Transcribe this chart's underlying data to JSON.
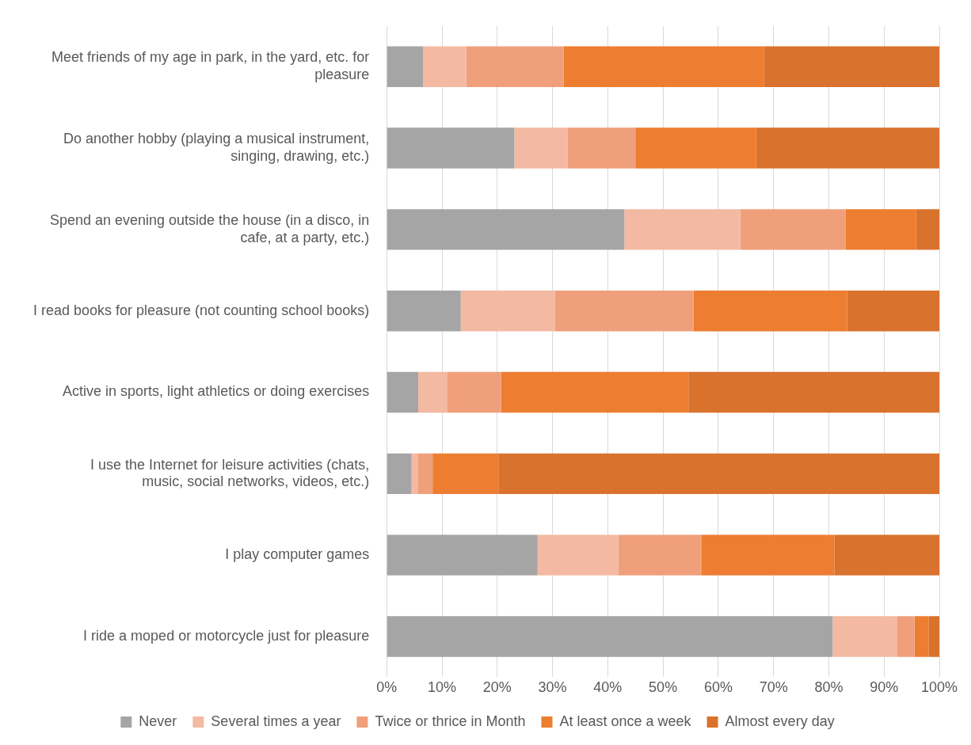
{
  "chart_data": {
    "type": "bar",
    "orientation": "horizontal",
    "stacked": true,
    "categories": [
      "Meet friends of my age in park, in the yard, etc. for pleasure",
      "Do another hobby (playing a musical instrument, singing, drawing, etc.)",
      "Spend an evening outside the house (in a disco, in cafe, at a party, etc.)",
      "I read books for pleasure (not counting school books)",
      "Active in sports, light athletics or doing exercises",
      "I use the Internet for leisure activities (chats, music, social networks, videos, etc.)",
      "I play computer games",
      "I ride a moped or motorcycle just for pleasure"
    ],
    "series": [
      {
        "name": "Never",
        "color": "#a5a5a5",
        "values": [
          6.6,
          23.1,
          43,
          13.4,
          5.7,
          4.5,
          27.3,
          80.7
        ]
      },
      {
        "name": "Several times a year",
        "color": "#f4b9a2",
        "values": [
          7.8,
          9.6,
          21,
          17,
          5.3,
          1.2,
          14.6,
          11.6
        ]
      },
      {
        "name": "Twice or thrice in Month",
        "color": "#f09f7b",
        "values": [
          17.6,
          12.3,
          19,
          25.1,
          9.7,
          2.6,
          15.1,
          3.2
        ]
      },
      {
        "name": "At least once a week",
        "color": "#ed7d31",
        "values": [
          36.3,
          21.8,
          12.8,
          27.8,
          33.9,
          12,
          24,
          2.6
        ]
      },
      {
        "name": "Almost every day",
        "color": "#d9722d",
        "values": [
          31.7,
          33.2,
          4.2,
          16.7,
          45.4,
          79.7,
          19,
          1.9
        ]
      }
    ],
    "xlim": [
      0,
      100
    ],
    "xticks": [
      {
        "value": 0,
        "label": "0%"
      },
      {
        "value": 10,
        "label": "10%"
      },
      {
        "value": 20,
        "label": "20%"
      },
      {
        "value": 30,
        "label": "30%"
      },
      {
        "value": 40,
        "label": "40%"
      },
      {
        "value": 50,
        "label": "50%"
      },
      {
        "value": 60,
        "label": "60%"
      },
      {
        "value": 70,
        "label": "70%"
      },
      {
        "value": 80,
        "label": "80%"
      },
      {
        "value": 90,
        "label": "90%"
      },
      {
        "value": 100,
        "label": "100%"
      }
    ],
    "grid": "x",
    "legend": "bottom"
  }
}
